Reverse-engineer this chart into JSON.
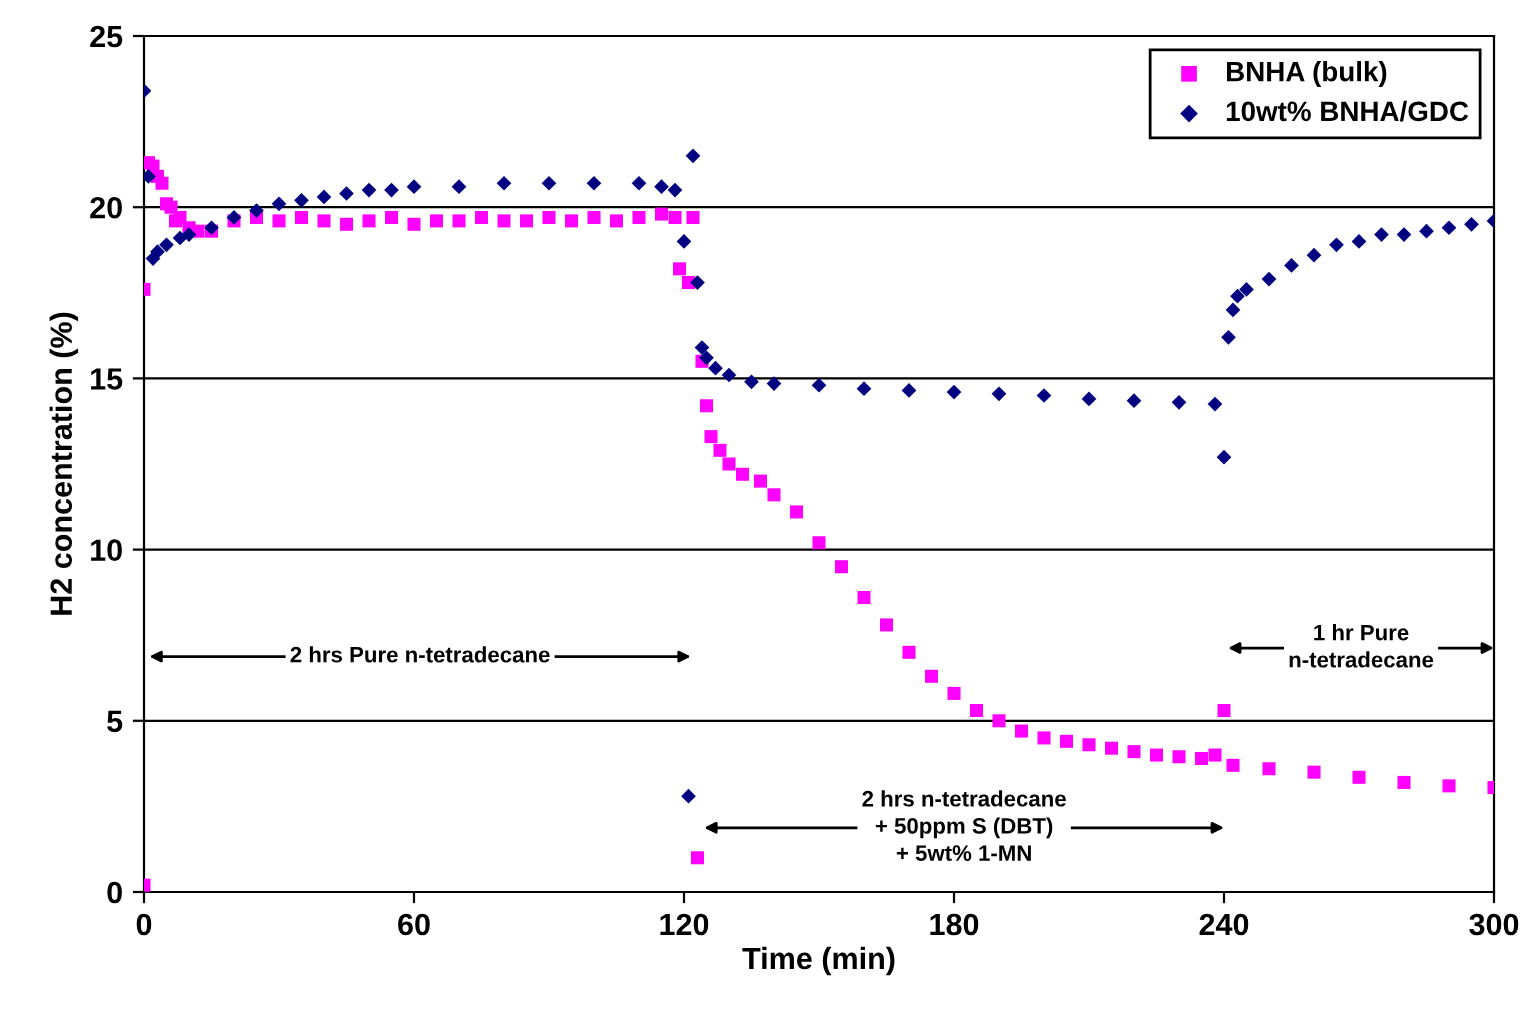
{
  "chart_data": {
    "type": "scatter",
    "xlabel": "Time (min)",
    "ylabel": "H2 concentration (%)",
    "xlim": [
      0,
      300
    ],
    "ylim": [
      0,
      25
    ],
    "xticks": [
      0,
      60,
      120,
      180,
      240,
      300
    ],
    "yticks": [
      0,
      5,
      10,
      15,
      20,
      25
    ],
    "grid": "y",
    "legend": "top right",
    "series": [
      {
        "name": "BNHA (bulk)",
        "color": "#ff00ff",
        "marker": "square",
        "x": [
          0,
          0,
          1,
          2,
          3,
          4,
          5,
          6,
          7,
          8,
          10,
          12,
          15,
          20,
          25,
          30,
          35,
          40,
          45,
          50,
          55,
          60,
          65,
          70,
          75,
          80,
          85,
          90,
          95,
          100,
          105,
          110,
          115,
          118,
          119,
          121,
          122,
          123,
          124,
          125,
          126,
          128,
          130,
          133,
          137,
          140,
          145,
          150,
          155,
          160,
          165,
          170,
          175,
          180,
          185,
          190,
          195,
          200,
          205,
          210,
          215,
          220,
          225,
          230,
          235,
          238,
          240,
          242,
          250,
          260,
          270,
          280,
          290,
          300
        ],
        "values": [
          0.2,
          17.6,
          21.3,
          21.2,
          20.9,
          20.7,
          20.1,
          20.0,
          19.6,
          19.7,
          19.4,
          19.3,
          19.3,
          19.6,
          19.7,
          19.6,
          19.7,
          19.6,
          19.5,
          19.6,
          19.7,
          19.5,
          19.6,
          19.6,
          19.7,
          19.6,
          19.6,
          19.7,
          19.6,
          19.7,
          19.6,
          19.7,
          19.8,
          19.7,
          18.2,
          17.8,
          19.7,
          1.0,
          15.5,
          14.2,
          13.3,
          12.9,
          12.5,
          12.2,
          12.0,
          11.6,
          11.1,
          10.2,
          9.5,
          8.6,
          7.8,
          7.0,
          6.3,
          5.8,
          5.3,
          5.0,
          4.7,
          4.5,
          4.4,
          4.3,
          4.2,
          4.1,
          4.0,
          3.95,
          3.9,
          4.0,
          5.3,
          3.7,
          3.6,
          3.5,
          3.35,
          3.2,
          3.1,
          3.05
        ]
      },
      {
        "name": "10wt% BNHA/GDC",
        "color": "#000080",
        "marker": "diamond",
        "x": [
          0,
          1,
          2,
          3,
          5,
          8,
          10,
          15,
          20,
          25,
          30,
          35,
          40,
          45,
          50,
          55,
          60,
          70,
          80,
          90,
          100,
          110,
          115,
          118,
          120,
          121,
          122,
          123,
          124,
          125,
          127,
          130,
          135,
          140,
          150,
          160,
          170,
          180,
          190,
          200,
          210,
          220,
          230,
          238,
          240,
          241,
          242,
          243,
          245,
          250,
          255,
          260,
          265,
          270,
          275,
          280,
          285,
          290,
          295,
          300
        ],
        "values": [
          23.4,
          20.9,
          18.5,
          18.7,
          18.9,
          19.1,
          19.2,
          19.4,
          19.7,
          19.9,
          20.1,
          20.2,
          20.3,
          20.4,
          20.5,
          20.5,
          20.6,
          20.6,
          20.7,
          20.7,
          20.7,
          20.7,
          20.6,
          20.5,
          19.0,
          2.8,
          21.5,
          17.8,
          15.9,
          15.6,
          15.3,
          15.1,
          14.9,
          14.85,
          14.8,
          14.7,
          14.65,
          14.6,
          14.55,
          14.5,
          14.4,
          14.35,
          14.3,
          14.25,
          12.7,
          16.2,
          17.0,
          17.4,
          17.6,
          17.9,
          18.3,
          18.6,
          18.9,
          19.0,
          19.2,
          19.2,
          19.3,
          19.4,
          19.5,
          19.6
        ]
      }
    ],
    "annotations": [
      "2 hrs Pure n-tetradecane",
      "2 hrs n-tetradecane\n+ 50ppm S (DBT)\n+ 5wt% 1-MN",
      "1 hr Pure\nn-tetradecane"
    ]
  }
}
